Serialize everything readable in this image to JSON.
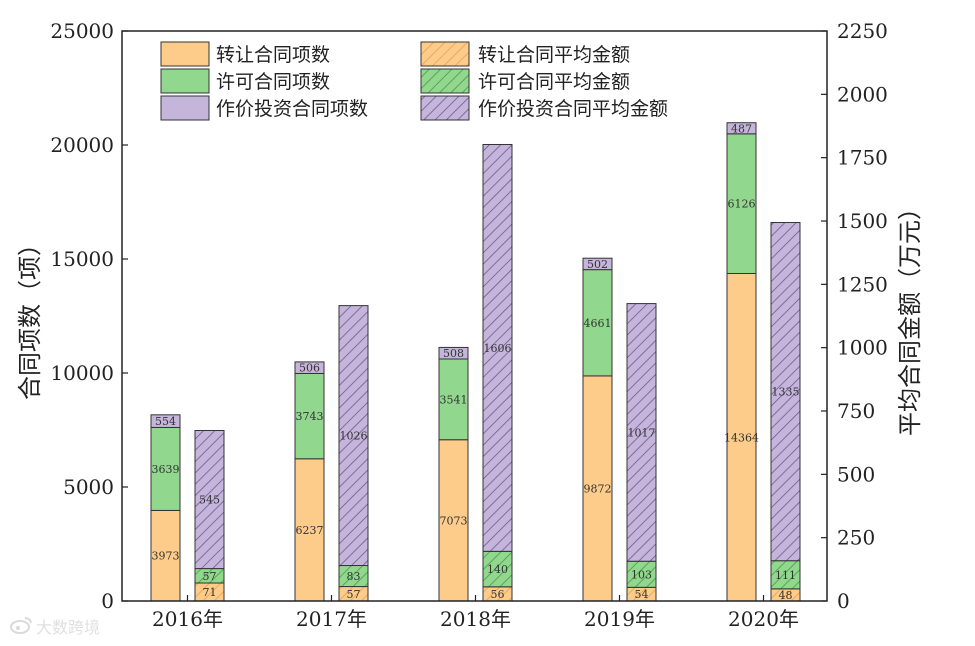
{
  "colors": {
    "transfer": "#fdcc8a",
    "license": "#91d88e",
    "invest": "#c5b5db",
    "hatch_transfer": "#e8a050",
    "hatch_license": "#4a9a4a",
    "hatch_invest": "#6a5a96",
    "axis": "#222222"
  },
  "watermark": {
    "icon": "weibo-icon",
    "text": "大数跨境"
  },
  "chart_data": {
    "type": "bar",
    "stacked": true,
    "dual_axis": true,
    "categories": [
      "2016年",
      "2017年",
      "2018年",
      "2019年",
      "2020年"
    ],
    "y_left": {
      "label": "合同项数（项）",
      "lim": [
        0,
        25000
      ],
      "ticks": [
        "0",
        "5000",
        "10000",
        "15000",
        "20000",
        "25000"
      ]
    },
    "y_right": {
      "label": "平均合同金额（万元）",
      "lim": [
        0,
        2250
      ],
      "ticks": [
        "0",
        "250",
        "500",
        "750",
        "1000",
        "1250",
        "1500",
        "1750",
        "2000",
        "2250"
      ]
    },
    "count_series": [
      {
        "name": "转让合同项数",
        "values": [
          3973,
          6237,
          7073,
          9872,
          14364
        ],
        "labels": [
          "3973",
          "6237",
          "7073",
          "9872",
          "14364"
        ]
      },
      {
        "name": "许可合同项数",
        "values": [
          3639,
          3743,
          3541,
          4661,
          6126
        ],
        "labels": [
          "3639",
          "3743",
          "3541",
          "4661",
          "6126"
        ]
      },
      {
        "name": "作价投资合同项数",
        "values": [
          554,
          506,
          508,
          502,
          487
        ],
        "labels": [
          "554",
          "506",
          "508",
          "502",
          "487"
        ]
      }
    ],
    "amount_series": [
      {
        "name": "转让合同平均金额",
        "values": [
          71,
          57,
          56,
          54,
          48
        ],
        "labels": [
          "71",
          "57",
          "56",
          "54",
          "48"
        ]
      },
      {
        "name": "许可合同平均金额",
        "values": [
          57,
          83,
          140,
          103,
          111
        ],
        "labels": [
          "57",
          "83",
          "140",
          "103",
          "111"
        ]
      },
      {
        "name": "作价投资合同平均金额",
        "values": [
          545,
          1026,
          1606,
          1017,
          1335
        ],
        "labels": [
          "545",
          "1026",
          "1606",
          "1017",
          "1335"
        ]
      }
    ],
    "legend_position": "top-left",
    "grid": false
  }
}
